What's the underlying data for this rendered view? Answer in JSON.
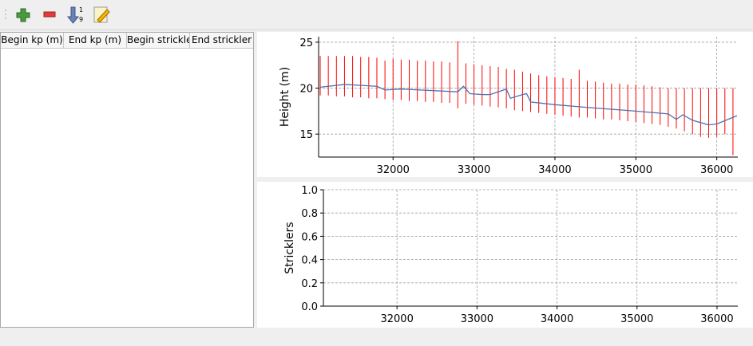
{
  "table": {
    "columns": [
      "Begin kp (m)",
      "End kp (m)",
      "Begin strickler",
      "End strickler"
    ]
  },
  "chart_data": [
    {
      "type": "line",
      "ylabel": "Height (m)",
      "xlim": [
        31080,
        36260
      ],
      "ylim": [
        12.5,
        25.6
      ],
      "xticks": [
        32000,
        33000,
        34000,
        35000,
        36000
      ],
      "yticks": [
        15,
        20,
        25
      ],
      "grid": true,
      "ranges": {
        "color": "#ff0000",
        "x": [
          31100,
          31200,
          31300,
          31400,
          31500,
          31600,
          31700,
          31800,
          31900,
          32000,
          32100,
          32200,
          32300,
          32400,
          32500,
          32600,
          32700,
          32800,
          32900,
          33000,
          33100,
          33200,
          33300,
          33400,
          33500,
          33600,
          33700,
          33800,
          33900,
          34000,
          34100,
          34200,
          34300,
          34400,
          34500,
          34600,
          34700,
          34800,
          34900,
          35000,
          35100,
          35200,
          35300,
          35400,
          35500,
          35600,
          35700,
          35800,
          35900,
          36000,
          36100,
          36200
        ],
        "low": [
          19.2,
          19.2,
          19.1,
          19.1,
          19.0,
          19.0,
          18.9,
          18.9,
          18.8,
          18.7,
          18.7,
          18.6,
          18.6,
          18.5,
          18.5,
          18.4,
          18.4,
          17.8,
          18.3,
          18.2,
          18.1,
          18.0,
          17.9,
          17.8,
          17.6,
          17.5,
          17.4,
          17.3,
          17.2,
          17.1,
          17.0,
          16.9,
          16.8,
          16.8,
          16.7,
          16.6,
          16.6,
          16.5,
          16.4,
          16.3,
          16.2,
          16.1,
          16.0,
          15.8,
          15.6,
          15.3,
          15.0,
          14.7,
          14.6,
          14.7,
          15.0,
          12.7
        ],
        "high": [
          23.5,
          23.5,
          23.5,
          23.5,
          23.5,
          23.4,
          23.4,
          23.3,
          23.0,
          23.2,
          23.1,
          23.1,
          23.0,
          23.0,
          22.9,
          22.9,
          22.8,
          25.1,
          22.7,
          22.6,
          22.5,
          22.4,
          22.3,
          22.1,
          22.0,
          21.8,
          21.6,
          21.4,
          21.3,
          21.2,
          21.1,
          21.0,
          22.0,
          20.8,
          20.7,
          20.6,
          20.5,
          20.5,
          20.4,
          20.4,
          20.3,
          20.2,
          20.1,
          20.0,
          20.0,
          20.0,
          20.0,
          20.0,
          20.0,
          20.0,
          20.0,
          20.0
        ]
      },
      "series": [
        {
          "color": "#4c72b0",
          "x": [
            31100,
            31400,
            31800,
            31900,
            32100,
            32800,
            32870,
            32950,
            33100,
            33200,
            33400,
            33450,
            33600,
            33650,
            33700,
            34000,
            34400,
            35000,
            35400,
            35500,
            35580,
            35700,
            35900,
            36000,
            36250
          ],
          "values": [
            20.1,
            20.4,
            20.2,
            19.8,
            19.9,
            19.6,
            20.2,
            19.4,
            19.3,
            19.3,
            19.9,
            18.9,
            19.3,
            19.4,
            18.5,
            18.2,
            17.9,
            17.5,
            17.2,
            16.6,
            17.1,
            16.5,
            16.0,
            16.1,
            17.0
          ]
        }
      ]
    },
    {
      "type": "line",
      "ylabel": "Stricklers",
      "xlim": [
        31080,
        36260
      ],
      "ylim": [
        0,
        1
      ],
      "xticks": [
        32000,
        33000,
        34000,
        35000,
        36000
      ],
      "yticks": [
        {
          "value": 0,
          "label": "0.0"
        },
        0.2,
        0.4,
        0.6,
        0.8,
        {
          "value": 1,
          "label": "1.0"
        }
      ],
      "grid": true,
      "series": []
    }
  ]
}
